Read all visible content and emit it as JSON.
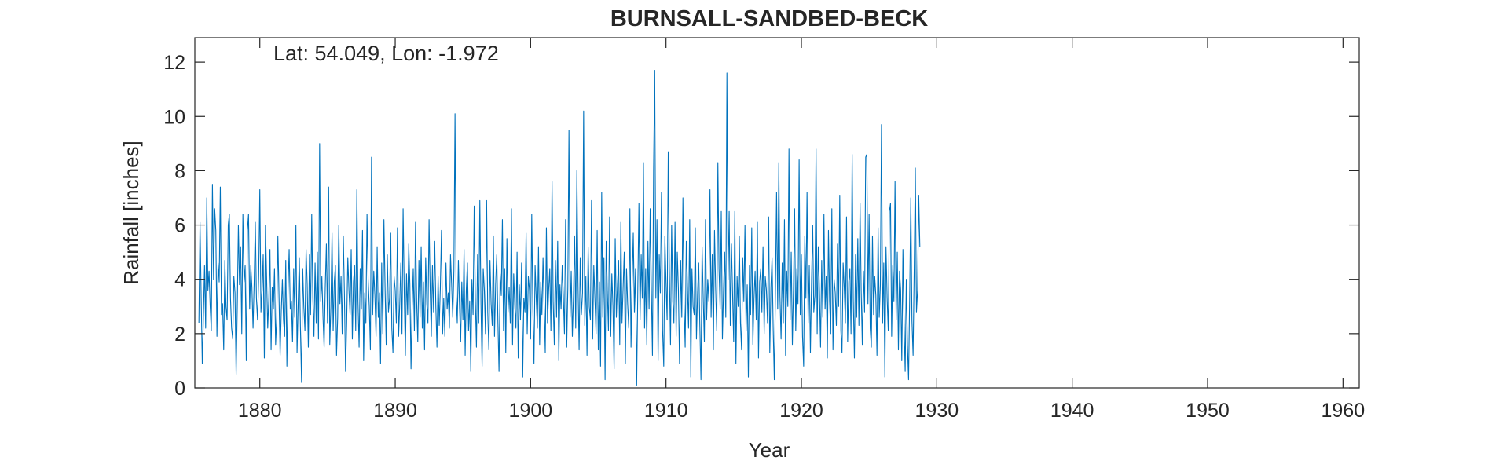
{
  "chart_data": {
    "type": "line",
    "title": "BURNSALL-SANDBED-BECK",
    "annotation": "Lat: 54.049, Lon: -1.972",
    "xlabel": "Year",
    "ylabel": "Rainfall [inches]",
    "xlim": [
      1875.2,
      1961.2
    ],
    "ylim": [
      0,
      12.9
    ],
    "xticks": [
      1880,
      1890,
      1900,
      1910,
      1920,
      1930,
      1940,
      1950,
      1960
    ],
    "yticks": [
      0,
      2,
      4,
      6,
      8,
      10,
      12
    ],
    "grid": false,
    "series_color": "#0072BD",
    "series": [
      {
        "x_start": 1875.5,
        "x_step": 0.08333,
        "values": [
          2.4,
          6.1,
          3.4,
          0.9,
          2.6,
          4.5,
          2.2,
          7.0,
          3.6,
          4.3,
          3.0,
          2.1,
          7.5,
          4.0,
          6.6,
          5.8,
          1.9,
          4.6,
          3.9,
          7.4,
          2.7,
          3.1,
          1.4,
          4.7,
          3.0,
          2.5,
          6.0,
          6.4,
          3.3,
          2.2,
          1.8,
          4.1,
          3.5,
          0.5,
          2.9,
          6.0,
          3.8,
          5.2,
          2.0,
          6.4,
          3.9,
          4.5,
          1.0,
          5.8,
          6.4,
          2.9,
          4.5,
          3.7,
          2.2,
          3.9,
          6.1,
          3.3,
          2.5,
          4.1,
          7.3,
          2.8,
          3.6,
          4.9,
          1.1,
          6.0,
          4.1,
          2.2,
          3.3,
          5.1,
          1.4,
          3.7,
          2.9,
          4.4,
          1.6,
          2.6,
          5.6,
          3.4,
          1.2,
          2.8,
          4.0,
          2.5,
          1.9,
          4.7,
          0.8,
          3.6,
          5.1,
          2.9,
          3.2,
          1.7,
          4.4,
          2.6,
          6.0,
          1.3,
          3.1,
          4.8,
          2.2,
          0.2,
          4.4,
          3.0,
          2.1,
          5.1,
          3.8,
          1.5,
          4.9,
          2.7,
          6.4,
          3.3,
          1.9,
          4.6,
          2.4,
          5.0,
          1.8,
          9.0,
          3.2,
          4.1,
          2.6,
          1.5,
          3.7,
          5.3,
          2.4,
          7.4,
          1.6,
          3.0,
          5.7,
          2.1,
          3.9,
          4.5,
          1.2,
          2.6,
          6.0,
          3.1,
          4.1,
          2.0,
          5.6,
          3.4,
          0.6,
          2.4,
          4.8,
          3.6,
          2.7,
          5.1,
          1.8,
          3.9,
          4.5,
          2.1,
          7.3,
          3.2,
          1.5,
          4.4,
          2.9,
          5.8,
          1.0,
          3.5,
          2.4,
          6.4,
          4.0,
          3.0,
          1.4,
          8.5,
          2.7,
          4.3,
          3.4,
          1.9,
          5.2,
          2.6,
          3.5,
          0.9,
          4.6,
          2.0,
          6.2,
          3.7,
          1.6,
          4.9,
          2.8,
          3.3,
          5.7,
          2.2,
          1.3,
          4.1,
          3.6,
          2.4,
          5.9,
          1.9,
          3.1,
          4.6,
          2.0,
          6.6,
          3.5,
          1.2,
          4.2,
          2.7,
          5.3,
          3.8,
          0.7,
          3.0,
          4.4,
          2.1,
          6.1,
          3.2,
          1.7,
          4.7,
          2.6,
          5.2,
          2.2,
          3.9,
          1.4,
          4.8,
          3.1,
          2.4,
          6.2,
          3.6,
          1.9,
          4.5,
          2.8,
          5.4,
          3.0,
          1.5,
          4.1,
          2.3,
          3.7,
          5.8,
          2.0,
          3.3,
          1.9,
          4.6,
          2.9,
          3.5,
          2.2,
          4.9,
          3.8,
          2.6,
          4.3,
          10.1,
          3.4,
          2.4,
          4.7,
          3.0,
          1.7,
          3.9,
          2.5,
          5.1,
          1.2,
          3.6,
          4.6,
          2.1,
          3.2,
          0.6,
          4.0,
          2.7,
          6.7,
          3.3,
          1.5,
          4.9,
          2.4,
          6.9,
          3.1,
          0.8,
          4.4,
          3.6,
          2.0,
          6.9,
          2.8,
          1.4,
          4.7,
          3.1,
          2.3,
          5.6,
          1.9,
          3.8,
          4.9,
          2.5,
          0.6,
          4.2,
          3.4,
          6.2,
          2.1,
          4.4,
          1.3,
          5.5,
          2.8,
          3.7,
          2.4,
          6.6,
          1.6,
          4.2,
          3.0,
          2.2,
          5.0,
          1.1,
          3.8,
          2.5,
          4.6,
          0.4,
          3.3,
          2.8,
          5.7,
          2.0,
          4.1,
          3.6,
          1.8,
          6.4,
          2.9,
          0.9,
          4.5,
          3.3,
          2.2,
          5.2,
          1.6,
          3.9,
          2.7,
          4.8,
          3.0,
          1.3,
          5.9,
          2.4,
          3.6,
          4.4,
          2.1,
          7.6,
          3.2,
          1.6,
          4.7,
          2.6,
          5.4,
          1.0,
          3.8,
          2.9,
          4.5,
          3.4,
          2.0,
          6.2,
          1.5,
          3.7,
          9.5,
          2.6,
          4.3,
          1.9,
          3.4,
          5.6,
          2.2,
          8.0,
          3.9,
          1.4,
          4.8,
          2.7,
          3.5,
          10.2,
          2.3,
          4.1,
          1.2,
          5.2,
          3.0,
          2.5,
          6.9,
          1.8,
          4.5,
          3.3,
          2.0,
          5.8,
          1.4,
          3.9,
          0.8,
          7.2,
          2.6,
          4.8,
          0.3,
          5.4,
          3.6,
          2.1,
          6.3,
          1.9,
          4.2,
          3.0,
          0.7,
          5.5,
          2.6,
          3.8,
          4.7,
          1.6,
          6.1,
          2.4,
          3.7,
          5.0,
          0.9,
          4.4,
          3.1,
          2.2,
          6.6,
          1.5,
          3.9,
          5.7,
          2.8,
          4.4,
          0.1,
          3.6,
          6.8,
          2.5,
          4.9,
          3.3,
          8.3,
          2.2,
          4.4,
          1.6,
          5.4,
          2.9,
          6.6,
          3.7,
          1.2,
          8.0,
          11.7,
          3.3,
          6.2,
          1.0,
          4.9,
          3.5,
          7.2,
          2.1,
          0.8,
          5.6,
          3.9,
          2.5,
          8.7,
          4.3,
          1.6,
          6.0,
          3.2,
          2.4,
          6.1,
          1.9,
          5.0,
          3.6,
          0.9,
          4.7,
          2.6,
          7.0,
          3.1,
          1.5,
          5.4,
          3.8,
          2.2,
          6.2,
          0.4,
          4.4,
          3.0,
          2.7,
          5.9,
          1.8,
          3.5,
          4.6,
          2.3,
          0.3,
          5.2,
          3.3,
          1.7,
          6.2,
          2.5,
          4.0,
          3.2,
          7.3,
          2.6,
          4.9,
          1.4,
          5.8,
          3.7,
          2.1,
          8.3,
          4.4,
          2.9,
          6.5,
          1.8,
          3.6,
          5.0,
          2.6,
          11.6,
          4.0,
          6.5,
          2.3,
          5.3,
          3.5,
          1.7,
          6.5,
          0.9,
          4.1,
          3.0,
          5.6,
          2.4,
          1.4,
          4.8,
          3.2,
          6.0,
          2.1,
          3.8,
          0.4,
          4.5,
          2.7,
          5.9,
          1.6,
          3.3,
          4.3,
          2.5,
          6.1,
          1.1,
          3.9,
          4.4,
          2.8,
          5.2,
          2.0,
          4.1,
          3.6,
          2.4,
          6.3,
          1.3,
          3.7,
          4.8,
          2.2,
          0.3,
          3.5,
          7.2,
          2.9,
          8.3,
          3.4,
          1.8,
          4.6,
          2.4,
          6.2,
          1.2,
          4.3,
          3.0,
          8.8,
          2.5,
          5.0,
          1.6,
          3.7,
          6.6,
          2.1,
          4.4,
          3.1,
          8.4,
          2.7,
          4.9,
          1.9,
          0.8,
          5.6,
          3.3,
          7.2,
          2.4,
          4.5,
          1.3,
          3.9,
          6.0,
          2.8,
          3.4,
          8.8,
          2.0,
          5.2,
          3.6,
          1.5,
          4.7,
          2.6,
          6.4,
          2.9,
          4.1,
          1.1,
          5.8,
          3.2,
          2.0,
          6.6,
          1.4,
          4.0,
          3.5,
          2.3,
          5.3,
          3.0,
          7.1,
          2.1,
          1.3,
          4.6,
          3.7,
          2.4,
          6.3,
          1.7,
          3.9,
          4.4,
          2.0,
          8.6,
          3.3,
          1.1,
          4.9,
          2.6,
          5.5,
          2.3,
          6.8,
          3.6,
          1.6,
          4.3,
          2.8,
          8.5,
          8.6,
          3.1,
          6.4,
          2.2,
          1.5,
          5.6,
          2.7,
          4.1,
          3.4,
          1.2,
          5.9,
          2.6,
          3.8,
          9.7,
          2.4,
          4.6,
          0.4,
          5.2,
          3.3,
          2.1,
          6.5,
          6.8,
          1.9,
          4.5,
          3.2,
          7.6,
          2.5,
          5.0,
          1.4,
          4.3,
          3.6,
          1.0,
          5.1,
          2.4,
          0.6,
          4.0,
          1.6,
          0.3,
          3.4,
          7.0,
          2.5,
          1.2,
          4.4,
          8.1,
          2.8,
          3.6,
          7.1,
          5.2
        ]
      }
    ]
  }
}
